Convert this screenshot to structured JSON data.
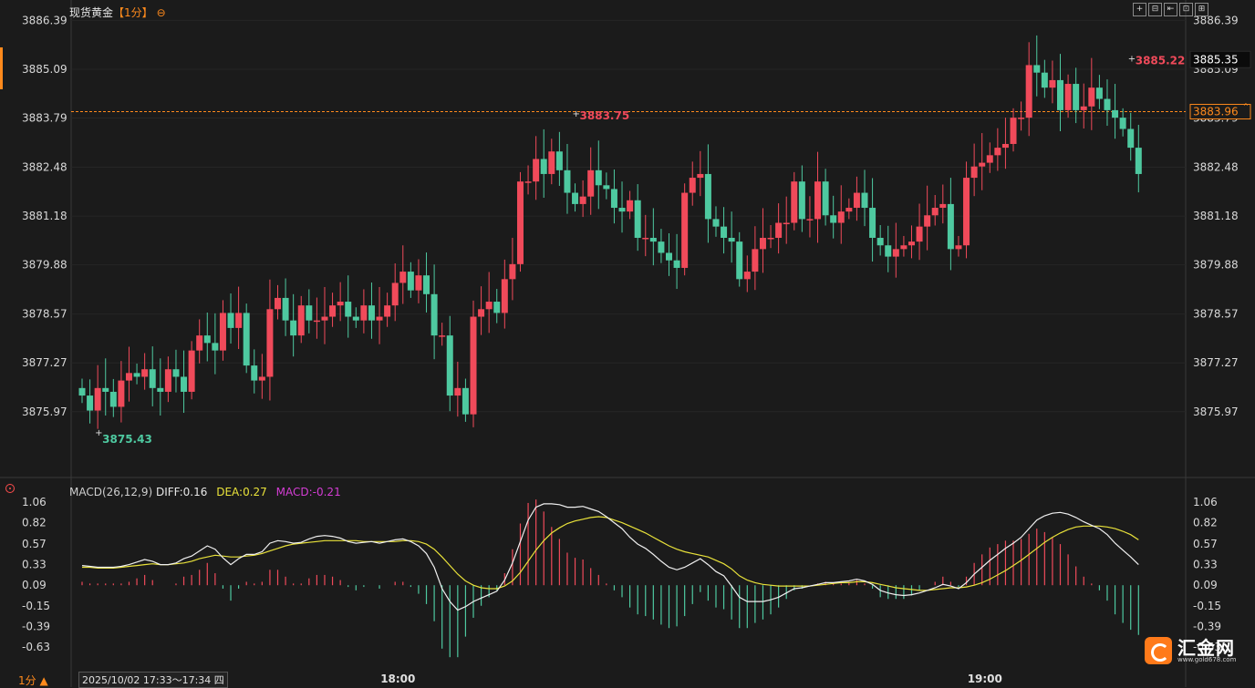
{
  "header": {
    "instrument": "现货黄金",
    "period": "【1分】",
    "currency_icon": "⊖",
    "tools": [
      "+",
      "⊟",
      "⇤",
      "⊡",
      "⊞"
    ]
  },
  "macd_legend": {
    "label": "MACD(26,12,9)",
    "diff": "DIFF:0.16",
    "dea": "DEA:0.27",
    "macd": "MACD:-0.21"
  },
  "footer": {
    "period_selector": "1分 ▲",
    "time_range": "2025/10/02 17:33～17:34 四",
    "xticks": [
      {
        "label": "18:00",
        "bar": 40
      },
      {
        "label": "19:00",
        "bar": 115
      }
    ]
  },
  "logo": {
    "name": "汇金网",
    "url": "www.gold678.com"
  },
  "colors": {
    "up": "#f04a5a",
    "down": "#4ec9a0",
    "diff": "#f0f0f0",
    "dea": "#e9e23a",
    "ref": "#ff8a1c"
  },
  "chart_data": [
    {
      "type": "candlestick",
      "ylim": [
        3874.8,
        3886.4
      ],
      "yticks": [
        3886.39,
        3885.09,
        3883.79,
        3882.48,
        3881.18,
        3879.88,
        3878.57,
        3877.27,
        3875.97
      ],
      "current_price": "3885.35",
      "reference_price": "3883.96",
      "reference_level": 3883.96,
      "annotations": [
        {
          "label": "3875.43",
          "bar": 2,
          "value": 3875.43,
          "color": "down"
        },
        {
          "label": "3883.75",
          "bar": 63,
          "value": 3883.75,
          "color": "up"
        },
        {
          "label": "3885.22",
          "bar": 134,
          "value": 3885.22,
          "color": "up"
        }
      ],
      "series": [
        {
          "closes": [
            3876.4,
            3876.0,
            3876.6,
            3876.5,
            3876.1,
            3876.8,
            3877.0,
            3876.9,
            3877.1,
            3876.6,
            3876.5,
            3877.1,
            3876.9,
            3876.5,
            3877.6,
            3878.0,
            3877.8,
            3877.6,
            3878.6,
            3878.2,
            3878.6,
            3877.2,
            3876.8,
            3876.9,
            3878.7,
            3879.0,
            3878.4,
            3878.0,
            3878.8,
            3878.4,
            3878.4,
            3878.5,
            3878.8,
            3878.9,
            3878.5,
            3878.4,
            3878.8,
            3878.4,
            3878.5,
            3878.8,
            3879.4,
            3879.7,
            3879.2,
            3879.6,
            3879.1,
            3878.0,
            3878.0,
            3876.4,
            3876.6,
            3875.9,
            3878.5,
            3878.7,
            3878.9,
            3878.6,
            3879.5,
            3879.9,
            3882.1,
            3882.1,
            3882.7,
            3882.3,
            3882.9,
            3882.4,
            3881.8,
            3881.5,
            3881.7,
            3882.4,
            3882.0,
            3881.9,
            3881.4,
            3881.3,
            3881.6,
            3880.6,
            3880.6,
            3880.5,
            3880.2,
            3880.0,
            3879.8,
            3881.8,
            3882.2,
            3882.3,
            3881.1,
            3880.9,
            3880.6,
            3880.5,
            3879.5,
            3879.7,
            3880.3,
            3880.6,
            3880.6,
            3881.0,
            3881.0,
            3882.1,
            3881.1,
            3881.1,
            3882.1,
            3881.2,
            3881.0,
            3881.3,
            3881.4,
            3881.8,
            3881.4,
            3880.6,
            3880.4,
            3880.1,
            3880.3,
            3880.4,
            3880.5,
            3880.9,
            3881.2,
            3881.4,
            3881.5,
            3880.3,
            3880.4,
            3882.2,
            3882.5,
            3882.6,
            3882.8,
            3883.0,
            3883.1,
            3883.8,
            3883.8,
            3885.2,
            3885.0,
            3884.6,
            3884.8,
            3884.0,
            3884.7,
            3884.0,
            3884.1,
            3884.6,
            3884.3,
            3884.0,
            3883.8,
            3883.5,
            3883.0,
            3882.3
          ],
          "opens": [
            3876.6,
            3876.4,
            3876.0,
            3876.6,
            3876.5,
            3876.1,
            3876.8,
            3877.0,
            3876.9,
            3877.1,
            3876.6,
            3876.5,
            3877.1,
            3876.9,
            3876.5,
            3877.6,
            3878.0,
            3877.8,
            3877.6,
            3878.6,
            3878.2,
            3878.6,
            3877.2,
            3876.8,
            3876.9,
            3878.7,
            3879.0,
            3878.4,
            3878.0,
            3878.8,
            3878.4,
            3878.4,
            3878.5,
            3878.8,
            3878.9,
            3878.5,
            3878.4,
            3878.8,
            3878.4,
            3878.5,
            3878.8,
            3879.4,
            3879.7,
            3879.2,
            3879.6,
            3879.1,
            3878.0,
            3878.0,
            3876.4,
            3876.6,
            3875.9,
            3878.5,
            3878.7,
            3878.9,
            3878.6,
            3879.5,
            3879.9,
            3882.1,
            3882.1,
            3882.7,
            3882.3,
            3882.9,
            3882.4,
            3881.8,
            3881.5,
            3881.7,
            3882.4,
            3882.0,
            3881.9,
            3881.4,
            3881.3,
            3881.6,
            3880.6,
            3880.6,
            3880.5,
            3880.2,
            3880.0,
            3879.8,
            3881.8,
            3882.2,
            3882.3,
            3881.1,
            3880.9,
            3880.6,
            3880.5,
            3879.5,
            3879.7,
            3880.3,
            3880.6,
            3880.6,
            3881.0,
            3881.0,
            3882.1,
            3881.1,
            3881.1,
            3882.1,
            3881.2,
            3881.0,
            3881.3,
            3881.4,
            3881.8,
            3881.4,
            3880.6,
            3880.4,
            3880.1,
            3880.3,
            3880.4,
            3880.5,
            3880.9,
            3881.2,
            3881.4,
            3881.5,
            3880.3,
            3880.4,
            3882.2,
            3882.5,
            3882.6,
            3882.8,
            3883.0,
            3883.1,
            3883.8,
            3883.8,
            3885.2,
            3885.0,
            3884.6,
            3884.8,
            3884.0,
            3884.7,
            3884.0,
            3884.1,
            3884.6,
            3884.3,
            3884.0,
            3883.8,
            3883.5,
            3883.0
          ]
        }
      ]
    },
    {
      "type": "macd",
      "ylim": [
        -0.95,
        1.06
      ],
      "yticks": [
        1.06,
        0.82,
        0.57,
        0.33,
        0.09,
        -0.15,
        -0.39,
        -0.63
      ],
      "series": [
        {
          "name": "DIFF",
          "values": [
            0.32,
            0.31,
            0.3,
            0.3,
            0.3,
            0.31,
            0.33,
            0.36,
            0.39,
            0.37,
            0.33,
            0.33,
            0.35,
            0.4,
            0.43,
            0.49,
            0.55,
            0.51,
            0.41,
            0.33,
            0.4,
            0.45,
            0.45,
            0.48,
            0.58,
            0.61,
            0.6,
            0.58,
            0.59,
            0.63,
            0.66,
            0.67,
            0.66,
            0.64,
            0.6,
            0.58,
            0.59,
            0.6,
            0.58,
            0.6,
            0.62,
            0.63,
            0.6,
            0.55,
            0.46,
            0.3,
            0.05,
            -0.1,
            -0.2,
            -0.16,
            -0.1,
            -0.06,
            -0.02,
            0.02,
            0.15,
            0.35,
            0.6,
            0.85,
            1.0,
            1.04,
            1.04,
            1.03,
            1.0,
            1.0,
            1.01,
            0.98,
            0.95,
            0.89,
            0.82,
            0.75,
            0.65,
            0.57,
            0.52,
            0.45,
            0.37,
            0.3,
            0.27,
            0.3,
            0.35,
            0.4,
            0.33,
            0.25,
            0.2,
            0.08,
            -0.05,
            -0.1,
            -0.1,
            -0.1,
            -0.08,
            -0.05,
            0.0,
            0.05,
            0.06,
            0.08,
            0.1,
            0.12,
            0.12,
            0.13,
            0.14,
            0.16,
            0.14,
            0.1,
            0.03,
            0.0,
            -0.02,
            -0.03,
            -0.02,
            0.0,
            0.03,
            0.06,
            0.1,
            0.08,
            0.05,
            0.12,
            0.22,
            0.3,
            0.38,
            0.45,
            0.52,
            0.58,
            0.65,
            0.75,
            0.85,
            0.9,
            0.93,
            0.94,
            0.92,
            0.88,
            0.83,
            0.79,
            0.75,
            0.68,
            0.58,
            0.5,
            0.42,
            0.33
          ]
        },
        {
          "name": "DEA",
          "values": [
            0.3,
            0.3,
            0.29,
            0.29,
            0.29,
            0.3,
            0.31,
            0.32,
            0.33,
            0.34,
            0.33,
            0.33,
            0.34,
            0.35,
            0.37,
            0.4,
            0.42,
            0.44,
            0.43,
            0.42,
            0.42,
            0.43,
            0.44,
            0.46,
            0.49,
            0.52,
            0.55,
            0.57,
            0.58,
            0.59,
            0.6,
            0.61,
            0.61,
            0.61,
            0.61,
            0.61,
            0.6,
            0.6,
            0.6,
            0.6,
            0.6,
            0.61,
            0.61,
            0.6,
            0.57,
            0.51,
            0.42,
            0.32,
            0.22,
            0.14,
            0.09,
            0.06,
            0.05,
            0.05,
            0.08,
            0.14,
            0.24,
            0.37,
            0.5,
            0.61,
            0.7,
            0.76,
            0.81,
            0.84,
            0.86,
            0.88,
            0.89,
            0.88,
            0.85,
            0.82,
            0.78,
            0.74,
            0.7,
            0.65,
            0.6,
            0.55,
            0.51,
            0.48,
            0.46,
            0.44,
            0.42,
            0.38,
            0.34,
            0.28,
            0.2,
            0.15,
            0.12,
            0.1,
            0.09,
            0.08,
            0.08,
            0.08,
            0.08,
            0.08,
            0.09,
            0.1,
            0.11,
            0.12,
            0.12,
            0.13,
            0.13,
            0.12,
            0.1,
            0.08,
            0.06,
            0.05,
            0.04,
            0.03,
            0.03,
            0.04,
            0.05,
            0.06,
            0.06,
            0.07,
            0.09,
            0.12,
            0.16,
            0.21,
            0.26,
            0.32,
            0.38,
            0.45,
            0.52,
            0.59,
            0.65,
            0.7,
            0.74,
            0.77,
            0.78,
            0.78,
            0.78,
            0.77,
            0.75,
            0.72,
            0.68,
            0.62
          ]
        }
      ]
    }
  ]
}
